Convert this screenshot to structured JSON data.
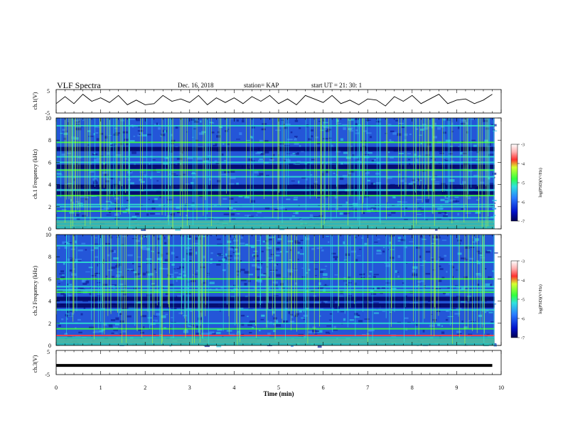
{
  "header": {
    "title": "VLF Spectra",
    "date": "Dec. 16, 2018",
    "station": "station= KAP",
    "start": "start  UT =   21: 30: 1"
  },
  "chart_data": [
    {
      "type": "line",
      "panel": "ch1-waveform",
      "ylabel": "ch.1(V)",
      "ylim": [
        -5,
        5
      ],
      "yticks": [
        -5,
        5
      ],
      "xlim": [
        0,
        10
      ],
      "x": [
        0.0,
        0.2,
        0.4,
        0.6,
        0.8,
        1.0,
        1.2,
        1.4,
        1.6,
        1.8,
        2.0,
        2.2,
        2.4,
        2.6,
        2.8,
        3.0,
        3.2,
        3.4,
        3.6,
        3.8,
        4.0,
        4.2,
        4.4,
        4.6,
        4.8,
        5.0,
        5.2,
        5.4,
        5.6,
        5.8,
        6.0,
        6.2,
        6.4,
        6.6,
        6.8,
        7.0,
        7.2,
        7.4,
        7.6,
        7.8,
        8.0,
        8.2,
        8.4,
        8.6,
        8.8,
        9.0,
        9.2,
        9.4,
        9.6,
        9.8
      ],
      "values": [
        -1.0,
        2.0,
        -1.0,
        3.0,
        0.0,
        1.5,
        -0.5,
        2.5,
        -1.5,
        0.5,
        -1.5,
        -1.0,
        2.5,
        0.0,
        1.0,
        -0.5,
        2.5,
        -1.5,
        1.5,
        -0.5,
        1.5,
        -1.0,
        2.0,
        0.0,
        2.5,
        -1.0,
        1.0,
        -1.5,
        2.5,
        1.0,
        -0.5,
        2.5,
        -1.0,
        0.5,
        -1.5,
        1.0,
        0.5,
        -2.0,
        2.0,
        0.0,
        2.5,
        -1.0,
        1.0,
        3.0,
        -1.0,
        0.5,
        1.0,
        -1.0,
        0.5,
        3.0
      ]
    },
    {
      "type": "heatmap",
      "panel": "ch1-spectrogram",
      "ylabel": "ch.1  Frequency  (kHz)",
      "ylim": [
        0,
        10
      ],
      "yticks": [
        0,
        2,
        4,
        6,
        8,
        10
      ],
      "xlim": [
        0,
        10
      ],
      "colorbar": {
        "label": "log(PSD)(V²/Hz)",
        "range": [
          -7,
          -3
        ],
        "ticks": [
          -7,
          -6,
          -5,
          -4,
          -3
        ]
      },
      "bands_khz": [
        0.3,
        0.6,
        1.0,
        1.6,
        2.0,
        2.2,
        3.0,
        3.5,
        4.7,
        5.3,
        6.0,
        6.5,
        7.8,
        9.3
      ],
      "dark_bands_khz": [
        3.2,
        3.8,
        5.6,
        7.2
      ]
    },
    {
      "type": "heatmap",
      "panel": "ch2-spectrogram",
      "ylabel": "ch.2  Frequency  (kHz)",
      "ylim": [
        0,
        10
      ],
      "yticks": [
        0,
        2,
        4,
        6,
        8,
        10
      ],
      "xlim": [
        0,
        10
      ],
      "colorbar": {
        "label": "log(PSD)(V²/Hz)",
        "range": [
          -7,
          -3
        ],
        "ticks": [
          -7,
          -6,
          -5,
          -4,
          -3
        ]
      },
      "bands_khz": [
        0.3,
        0.5,
        0.9,
        1.5,
        2.0,
        3.2,
        4.8,
        5.0,
        5.3,
        6.0,
        7.5,
        9.0
      ],
      "dark_bands_khz": [
        3.6,
        4.2
      ]
    },
    {
      "type": "line",
      "panel": "ch3-waveform",
      "ylabel": "ch.3(V)",
      "ylim": [
        -5,
        5
      ],
      "yticks": [
        -5,
        5
      ],
      "xlim": [
        0,
        10
      ],
      "x": [
        0,
        9.8
      ],
      "values": [
        -1.2,
        -1.2
      ]
    }
  ],
  "xaxis": {
    "label": "Time  (min)",
    "ticks": [
      0,
      1,
      2,
      3,
      4,
      5,
      6,
      7,
      8,
      9,
      10
    ]
  },
  "colors": {
    "line": "#000000",
    "cmap_low": "#000070",
    "cmap_mid": "#2b66e8",
    "cmap_cyan": "#33dcc8",
    "cmap_green": "#40ff30",
    "cmap_high": "#ff2020",
    "cmap_top": "#ffffff",
    "vertical_spikes": "#a8ff40"
  }
}
